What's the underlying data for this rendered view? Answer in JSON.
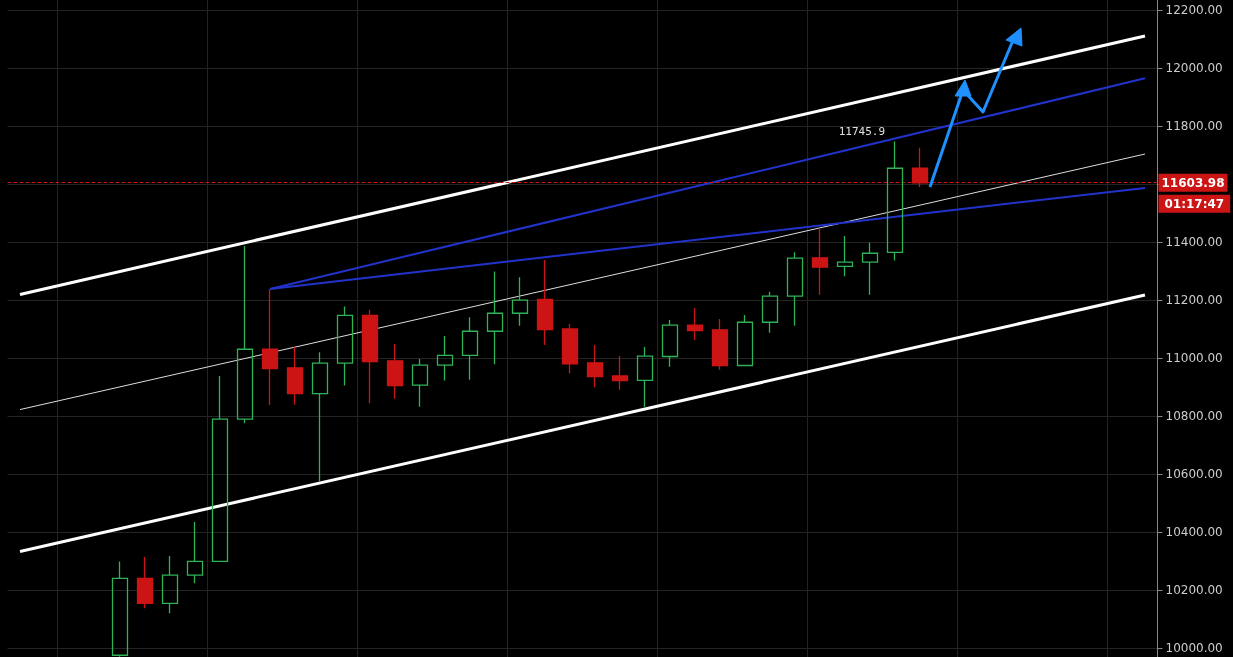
{
  "chart_data": {
    "type": "candlestick",
    "categories": [
      null,
      null,
      null,
      null,
      null,
      null,
      null,
      null,
      null,
      null,
      null,
      null,
      null,
      null,
      null,
      null,
      null,
      null,
      null,
      null,
      null,
      null,
      null,
      null,
      null,
      null,
      null,
      null,
      null,
      null,
      null,
      null,
      null,
      null,
      null,
      null,
      null,
      null,
      null,
      null,
      null,
      null,
      null,
      null,
      null,
      null
    ],
    "ohlc": [
      null,
      null,
      null,
      null,
      [
        9975,
        10298,
        9970,
        10240
      ],
      [
        10240,
        10314,
        10137,
        10154
      ],
      [
        10154,
        10317,
        10120,
        10251
      ],
      [
        10251,
        10434,
        10223,
        10299
      ],
      [
        10299,
        10938,
        10299,
        10789
      ],
      [
        10789,
        11386,
        10775,
        11030
      ],
      [
        11030,
        11237,
        10838,
        10963
      ],
      [
        10966,
        11039,
        10839,
        10877
      ],
      [
        10877,
        11020,
        10574,
        10982
      ],
      [
        10982,
        11177,
        10905,
        11147
      ],
      [
        11147,
        11166,
        10844,
        10987
      ],
      [
        10990,
        11048,
        10859,
        10905
      ],
      [
        10906,
        10996,
        10832,
        10975
      ],
      [
        10975,
        11076,
        10922,
        11009
      ],
      [
        11009,
        11140,
        10925,
        11092
      ],
      [
        11092,
        11298,
        10978,
        11154
      ],
      [
        11154,
        11278,
        11111,
        11199
      ],
      [
        11202,
        11338,
        11045,
        11098
      ],
      [
        11100,
        11117,
        10946,
        10980
      ],
      [
        10983,
        11045,
        10899,
        10936
      ],
      [
        10938,
        11007,
        10890,
        10922
      ],
      [
        10923,
        11038,
        10832,
        11006
      ],
      [
        11005,
        11131,
        10970,
        11113
      ],
      [
        11113,
        11172,
        11062,
        11094
      ],
      [
        11097,
        11134,
        10959,
        10974
      ],
      [
        10974,
        11148,
        10974,
        11123
      ],
      [
        11123,
        11228,
        11087,
        11213
      ],
      [
        11213,
        11364,
        11111,
        11344
      ],
      [
        11345,
        11447,
        11218,
        11313
      ],
      [
        11316,
        11420,
        11282,
        11330
      ],
      [
        11330,
        11397,
        11218,
        11361
      ],
      [
        11364,
        11745.9,
        11336,
        11654
      ],
      [
        11654,
        11725,
        11589,
        11603.98
      ],
      null,
      null,
      null,
      null,
      null,
      null,
      null,
      null,
      null
    ],
    "colors": [
      null,
      null,
      null,
      null,
      "#2eb356",
      "#cc1414",
      "#2eb356",
      "#2eb356",
      "#2eb356",
      "#2eb356",
      "#cc1414",
      "#cc1414",
      "#2eb356",
      "#2eb356",
      "#cc1414",
      "#cc1414",
      "#2eb356",
      "#2eb356",
      "#2eb356",
      "#2eb356",
      "#2eb356",
      "#cc1414",
      "#cc1414",
      "#cc1414",
      "#cc1414",
      "#2eb356",
      "#2eb356",
      "#cc1414",
      "#cc1414",
      "#2eb356",
      "#2eb356",
      "#2eb356",
      "#cc1414",
      "#2eb356",
      "#2eb356",
      "#2eb356",
      "#cc1414",
      null,
      null,
      null,
      null,
      null,
      null,
      null,
      null,
      null
    ],
    "series": [
      {
        "type": "line",
        "color": "#ffffff",
        "values": [
          11219,
          null,
          null,
          null,
          null,
          null,
          null,
          null,
          null,
          null,
          null,
          null,
          null,
          null,
          null,
          null,
          null,
          null,
          null,
          null,
          null,
          null,
          null,
          null,
          null,
          null,
          null,
          null,
          null,
          null,
          null,
          null,
          null,
          null,
          null,
          null,
          null,
          null,
          null,
          null,
          null,
          null,
          null,
          null,
          null,
          12110
        ]
      },
      {
        "type": "line",
        "color": "#ffffff",
        "values": [
          10333,
          null,
          null,
          null,
          null,
          null,
          null,
          null,
          null,
          null,
          null,
          null,
          null,
          null,
          null,
          null,
          null,
          null,
          null,
          null,
          null,
          null,
          null,
          null,
          null,
          null,
          null,
          null,
          null,
          null,
          null,
          null,
          null,
          null,
          null,
          null,
          null,
          null,
          null,
          null,
          null,
          null,
          null,
          null,
          null,
          11217
        ]
      },
      {
        "type": "line",
        "color": "#dddddd",
        "values": [
          10822,
          null,
          null,
          null,
          null,
          null,
          null,
          null,
          null,
          null,
          null,
          null,
          null,
          null,
          null,
          null,
          null,
          null,
          null,
          null,
          null,
          null,
          null,
          null,
          null,
          null,
          null,
          null,
          null,
          null,
          null,
          null,
          null,
          null,
          null,
          null,
          null,
          null,
          null,
          null,
          null,
          null,
          null,
          null,
          null,
          11703
        ]
      },
      {
        "type": "line",
        "color": "#2233cc",
        "values": [
          null,
          null,
          null,
          null,
          null,
          null,
          null,
          null,
          null,
          null,
          11238,
          null,
          null,
          null,
          null,
          null,
          null,
          null,
          null,
          null,
          null,
          null,
          null,
          null,
          null,
          null,
          null,
          null,
          null,
          null,
          null,
          null,
          null,
          null,
          null,
          null,
          null,
          null,
          null,
          null,
          null,
          null,
          null,
          null,
          null,
          11964
        ]
      },
      {
        "type": "line",
        "color": "#2233cc",
        "values": [
          null,
          null,
          null,
          null,
          null,
          null,
          null,
          null,
          null,
          null,
          11238,
          null,
          null,
          null,
          null,
          null,
          null,
          null,
          null,
          null,
          null,
          null,
          null,
          null,
          null,
          null,
          null,
          null,
          null,
          null,
          null,
          null,
          null,
          null,
          null,
          null,
          null,
          null,
          null,
          null,
          null,
          null,
          null,
          null,
          null,
          11586
        ]
      }
    ],
    "ylim": [
      9969,
      12234
    ],
    "yticks": [
      {
        "value": 10000,
        "label": "10000.00"
      },
      {
        "value": 10200,
        "label": "10200.00"
      },
      {
        "value": 10400,
        "label": "10400.00"
      },
      {
        "value": 10600,
        "label": "10600.00"
      },
      {
        "value": 10800,
        "label": "10800.00"
      },
      {
        "value": 11000,
        "label": "11000.00"
      },
      {
        "value": 11200,
        "label": "11200.00"
      },
      {
        "value": 11400,
        "label": "11400.00"
      },
      {
        "value": 11600,
        "label": null
      },
      {
        "value": 11800,
        "label": "11800.00"
      },
      {
        "value": 12000,
        "label": "12000.00"
      },
      {
        "value": 12200,
        "label": "12200.00"
      }
    ],
    "ref_lines": [
      {
        "axis": "y",
        "value": 11603.98,
        "label": "11603.98",
        "color": "#cc1414",
        "line_style": "dashed"
      }
    ],
    "annotations": [
      {
        "text": "11745.9",
        "y": 11745.9
      },
      "01:17:47"
    ],
    "grid": true,
    "tick_labels": "y",
    "line_style": "solid"
  }
}
